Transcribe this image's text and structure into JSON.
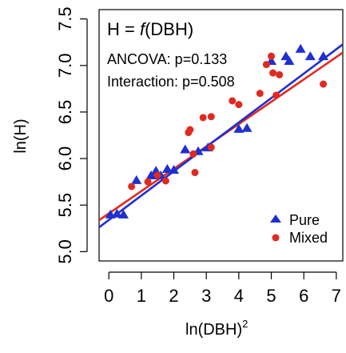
{
  "chart_data": {
    "type": "scatter",
    "title": "H = f(DBH)",
    "title_parts": {
      "prefix": "H = ",
      "func": "f",
      "suffix": "(DBH)"
    },
    "annotations": [
      "ANCOVA: p=0.133",
      "Interaction: p=0.508"
    ],
    "xlabel": "ln(DBH)",
    "xlabel_sup": "2",
    "ylabel": "ln(H)",
    "xlim": [
      -0.3,
      7.2
    ],
    "ylim": [
      4.9,
      7.6
    ],
    "xticks": [
      0,
      1,
      2,
      3,
      4,
      5,
      6,
      7
    ],
    "yticks": [
      "5.0",
      "5.5",
      "6.0",
      "6.5",
      "7.0",
      "7.5"
    ],
    "grid": false,
    "legend": {
      "position": "bottom-right"
    },
    "series": [
      {
        "name": "Pure",
        "marker": "triangle",
        "color": "#1f2fd0",
        "points": [
          [
            0.05,
            5.4
          ],
          [
            0.25,
            5.41
          ],
          [
            0.45,
            5.4
          ],
          [
            0.85,
            5.77
          ],
          [
            1.3,
            5.82
          ],
          [
            1.45,
            5.87
          ],
          [
            1.6,
            5.82
          ],
          [
            1.8,
            5.89
          ],
          [
            2.0,
            5.88
          ],
          [
            2.35,
            6.1
          ],
          [
            2.75,
            6.08
          ],
          [
            3.05,
            6.12
          ],
          [
            4.0,
            6.32
          ],
          [
            4.25,
            6.33
          ],
          [
            5.0,
            7.05
          ],
          [
            5.45,
            7.1
          ],
          [
            5.55,
            7.05
          ],
          [
            5.9,
            7.18
          ],
          [
            6.2,
            7.1
          ],
          [
            6.6,
            7.1
          ]
        ],
        "fit": {
          "intercept": 5.34,
          "slope": 0.262
        }
      },
      {
        "name": "Mixed",
        "marker": "circle",
        "color": "#e02a20",
        "points": [
          [
            0.7,
            5.7
          ],
          [
            1.2,
            5.75
          ],
          [
            1.5,
            5.82
          ],
          [
            1.75,
            5.76
          ],
          [
            2.45,
            6.28
          ],
          [
            2.5,
            6.31
          ],
          [
            2.65,
            5.85
          ],
          [
            2.6,
            6.05
          ],
          [
            2.9,
            6.44
          ],
          [
            3.15,
            6.45
          ],
          [
            3.15,
            6.12
          ],
          [
            3.8,
            6.62
          ],
          [
            4.0,
            6.58
          ],
          [
            4.65,
            6.7
          ],
          [
            4.85,
            7.01
          ],
          [
            5.0,
            7.1
          ],
          [
            5.05,
            6.92
          ],
          [
            5.15,
            6.68
          ],
          [
            5.25,
            6.9
          ],
          [
            6.6,
            6.8
          ]
        ],
        "fit": {
          "intercept": 5.41,
          "slope": 0.24
        }
      }
    ]
  }
}
